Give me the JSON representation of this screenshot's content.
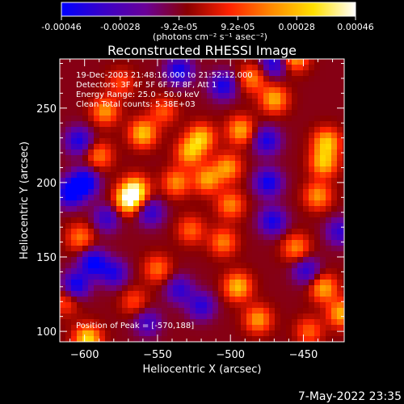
{
  "chart_data": {
    "type": "heatmap",
    "title": "Reconstructed RHESSI Image",
    "colorbar": {
      "ticks": [
        "-0.00046",
        "-0.00028",
        "-9.2e-05",
        "9.2e-05",
        "0.00028",
        "0.00046"
      ],
      "unit_label": "(photons cm⁻² s⁻¹ asec⁻²)",
      "range": [
        -0.00046,
        0.00046
      ],
      "colormap": [
        "#0000ff",
        "#3a00c8",
        "#6a0098",
        "#8a0000",
        "#ff2200",
        "#ff8a00",
        "#ffe000",
        "#ffffff"
      ]
    },
    "xlabel": "Heliocentric X (arcsec)",
    "ylabel": "Heliocentric Y (arcsec)",
    "x_ticks": [
      -600,
      -550,
      -500,
      -450
    ],
    "y_ticks": [
      100,
      150,
      200,
      250
    ],
    "xlim": [
      -617,
      -422
    ],
    "ylim": [
      93,
      283
    ],
    "annotations": [
      "19-Dec-2003 21:48:16.000 to 21:52:12.000",
      "Detectors: 3F 4F 5F 6F 7F 8F, Att 1",
      "Energy Range: 25.0 - 50.0 keV",
      "Clean      Total counts: 5.38E+03"
    ],
    "peak_label": "Position of Peak = [-570,188]",
    "peak_position": [
      -570,
      188
    ],
    "footer_date": "7-May-2022 23:35",
    "hotspots": [
      {
        "x": -570,
        "y": 188,
        "v": 1.0
      },
      {
        "x": -565,
        "y": 195,
        "v": 0.9
      },
      {
        "x": -560,
        "y": 233,
        "v": 0.82
      },
      {
        "x": -520,
        "y": 230,
        "v": 0.78
      },
      {
        "x": -528,
        "y": 220,
        "v": 0.72
      },
      {
        "x": -537,
        "y": 200,
        "v": 0.62
      },
      {
        "x": -516,
        "y": 202,
        "v": 0.7
      },
      {
        "x": -493,
        "y": 235,
        "v": 0.72
      },
      {
        "x": -502,
        "y": 210,
        "v": 0.68
      },
      {
        "x": -500,
        "y": 185,
        "v": 0.6
      },
      {
        "x": -505,
        "y": 160,
        "v": 0.58
      },
      {
        "x": -495,
        "y": 130,
        "v": 0.8
      },
      {
        "x": -481,
        "y": 108,
        "v": 0.67
      },
      {
        "x": -470,
        "y": 256,
        "v": 0.74
      },
      {
        "x": -434,
        "y": 227,
        "v": 0.8
      },
      {
        "x": -436,
        "y": 213,
        "v": 0.78
      },
      {
        "x": -440,
        "y": 191,
        "v": 0.65
      },
      {
        "x": -455,
        "y": 156,
        "v": 0.6
      },
      {
        "x": -436,
        "y": 129,
        "v": 0.72
      },
      {
        "x": -424,
        "y": 112,
        "v": 0.75
      },
      {
        "x": -586,
        "y": 248,
        "v": 0.66
      },
      {
        "x": -603,
        "y": 163,
        "v": 0.55
      },
      {
        "x": -550,
        "y": 142,
        "v": 0.52
      },
      {
        "x": -527,
        "y": 168,
        "v": 0.49
      },
      {
        "x": -598,
        "y": 95,
        "v": 0.9
      },
      {
        "x": -575,
        "y": 267,
        "v": 0.4
      },
      {
        "x": -485,
        "y": 270,
        "v": 0.58
      },
      {
        "x": -456,
        "y": 284,
        "v": 0.72
      },
      {
        "x": -613,
        "y": 120,
        "v": 0.42
      },
      {
        "x": -546,
        "y": 248,
        "v": 0.45
      },
      {
        "x": -590,
        "y": 218,
        "v": 0.55
      },
      {
        "x": -566,
        "y": 120,
        "v": 0.4
      },
      {
        "x": -446,
        "y": 100,
        "v": 0.48
      }
    ],
    "coldspots": [
      {
        "x": -600,
        "y": 200,
        "v": -0.95
      },
      {
        "x": -610,
        "y": 193,
        "v": -0.9
      },
      {
        "x": -594,
        "y": 146,
        "v": -0.85
      },
      {
        "x": -606,
        "y": 131,
        "v": -0.8
      },
      {
        "x": -474,
        "y": 200,
        "v": -0.78
      },
      {
        "x": -471,
        "y": 174,
        "v": -0.72
      },
      {
        "x": -475,
        "y": 228,
        "v": -0.7
      },
      {
        "x": -535,
        "y": 275,
        "v": -0.76
      },
      {
        "x": -505,
        "y": 265,
        "v": -0.72
      },
      {
        "x": -470,
        "y": 280,
        "v": -0.7
      },
      {
        "x": -580,
        "y": 139,
        "v": -0.65
      },
      {
        "x": -555,
        "y": 180,
        "v": -0.6
      },
      {
        "x": -535,
        "y": 128,
        "v": -0.58
      },
      {
        "x": -520,
        "y": 117,
        "v": -0.62
      },
      {
        "x": -557,
        "y": 106,
        "v": -0.5
      },
      {
        "x": -448,
        "y": 141,
        "v": -0.6
      },
      {
        "x": -425,
        "y": 167,
        "v": -0.57
      },
      {
        "x": -604,
        "y": 228,
        "v": -0.7
      },
      {
        "x": -585,
        "y": 176,
        "v": -0.55
      }
    ]
  }
}
